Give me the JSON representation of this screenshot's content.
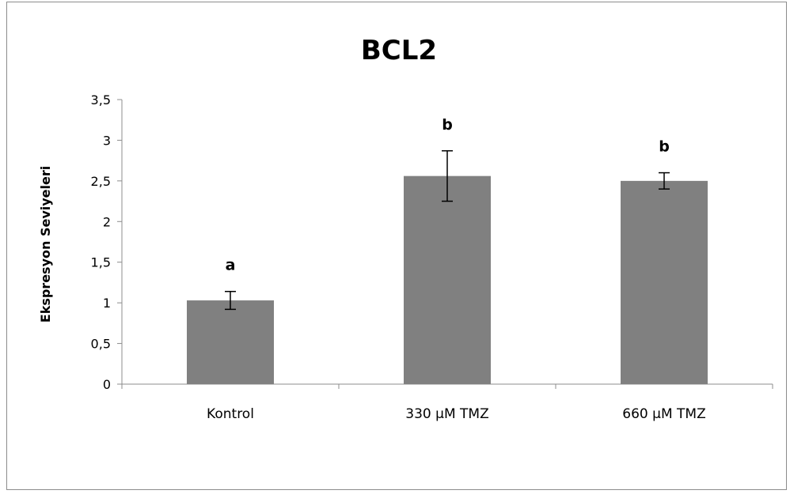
{
  "chart_data": {
    "type": "bar",
    "title": "BCL2",
    "xlabel": "",
    "ylabel": "Ekspresyon Seviyeleri",
    "categories": [
      "Kontrol",
      "330 µM TMZ",
      "660 µM TMZ"
    ],
    "values": [
      1.03,
      2.56,
      2.5
    ],
    "error": [
      0.11,
      0.31,
      0.1
    ],
    "significance_labels": [
      "a",
      "b",
      "b"
    ],
    "ylim": [
      0,
      3.5
    ],
    "yticks": [
      0,
      0.5,
      1,
      1.5,
      2,
      2.5,
      3,
      3.5
    ],
    "ytick_labels": [
      "0",
      "0,5",
      "1",
      "1,5",
      "2",
      "2,5",
      "3",
      "3,5"
    ],
    "grid": false,
    "legend": "none",
    "bar_color": "#808080",
    "error_bar_color": "#000000"
  }
}
